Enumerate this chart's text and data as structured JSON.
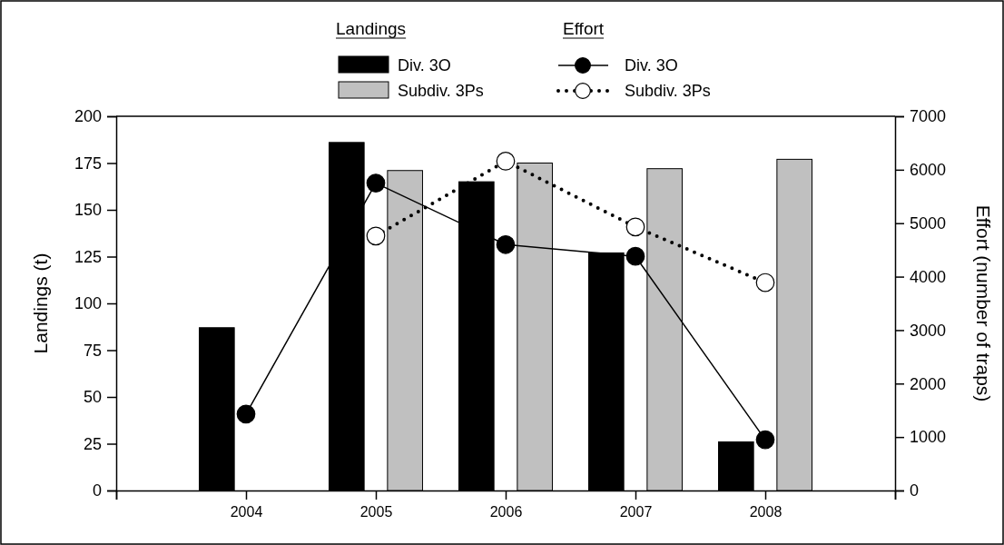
{
  "chart_data": {
    "type": "bar",
    "x": [
      2004,
      2005,
      2006,
      2007,
      2008
    ],
    "xlim": [
      2003,
      2009
    ],
    "xticks": [
      {
        "value": 2003,
        "label": null
      },
      2004,
      2005,
      2006,
      2007,
      2008,
      {
        "value": 2009,
        "label": null
      }
    ],
    "ylabel": "Landings (t)",
    "y2label": "Effort (number of traps)",
    "ylim": [
      0,
      200
    ],
    "yticks": [
      0,
      25,
      50,
      75,
      100,
      125,
      150,
      175,
      200
    ],
    "y2lim": [
      0,
      7000
    ],
    "y2ticks": [
      0,
      1000,
      2000,
      3000,
      4000,
      5000,
      6000,
      7000
    ],
    "annotations": [
      "Landings",
      "Effort"
    ],
    "legend": "top",
    "grid": false,
    "series": [
      {
        "name": "Div. 3O",
        "color": "#000000",
        "values": [
          87,
          186,
          165,
          127,
          26
        ]
      },
      {
        "name": "Subdiv. 3Ps",
        "color": "#c0c0c0",
        "values": [
          null,
          171,
          175,
          172,
          177
        ]
      },
      {
        "name": "Div. 3O",
        "type": "line",
        "axis": "y2",
        "color": "#000000",
        "marker": "circle",
        "line_style": "solid",
        "values": [
          1430,
          5750,
          4600,
          4380,
          950
        ]
      },
      {
        "name": "Subdiv. 3Ps",
        "type": "line",
        "axis": "y2",
        "color": "#000000",
        "marker": "circle",
        "line_style": "dotted",
        "values": [
          null,
          4760,
          6160,
          4930,
          3890
        ]
      }
    ]
  }
}
